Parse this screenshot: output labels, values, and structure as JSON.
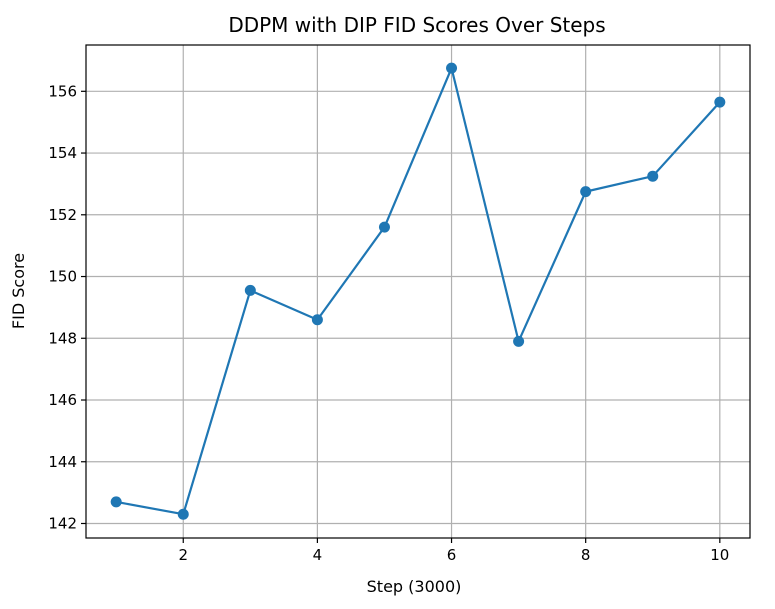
{
  "chart_data": {
    "type": "line",
    "title": "DDPM with DIP FID Scores Over Steps",
    "xlabel": "Step (3000)",
    "ylabel": "FID Score",
    "x": [
      1,
      2,
      3,
      4,
      5,
      6,
      7,
      8,
      9,
      10
    ],
    "series": [
      {
        "values": [
          142.7,
          142.3,
          149.55,
          148.6,
          151.6,
          156.75,
          147.9,
          152.75,
          153.25,
          155.65
        ],
        "color": "#1f77b4",
        "marker": "circle"
      }
    ],
    "xlim": [
      0.55,
      10.45
    ],
    "ylim": [
      141.53,
      157.5
    ],
    "xticks": [
      2,
      4,
      6,
      8,
      10
    ],
    "yticks": [
      142,
      144,
      146,
      148,
      150,
      152,
      154,
      156
    ],
    "grid": true
  }
}
